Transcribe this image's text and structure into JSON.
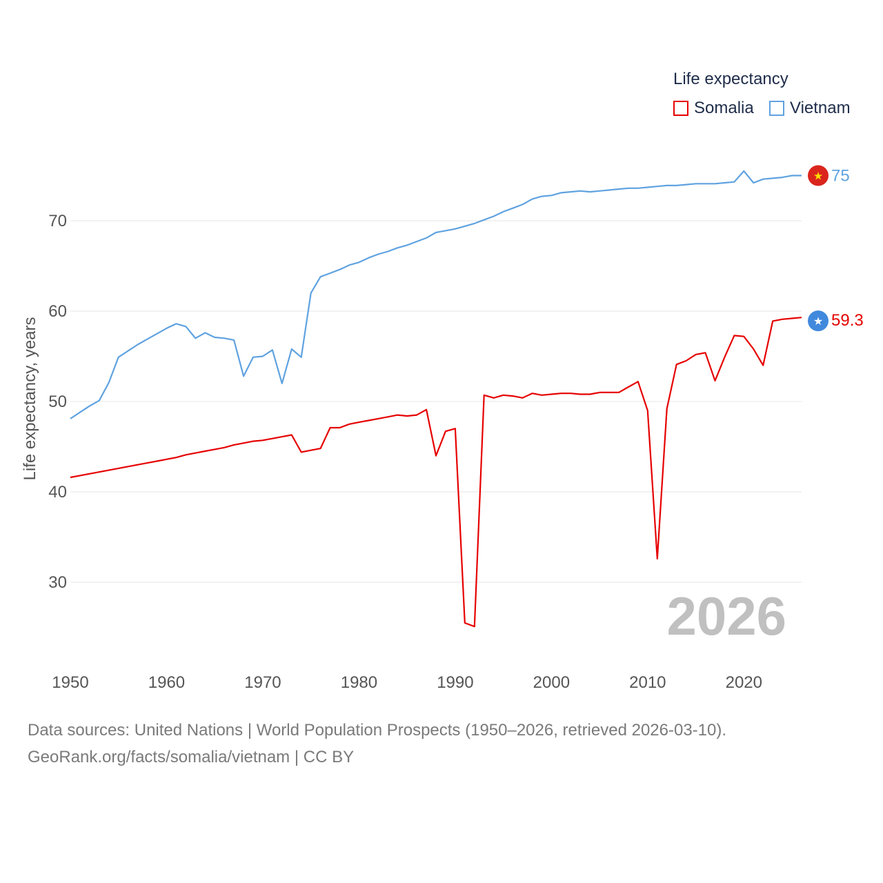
{
  "legend": {
    "title": "Life expectancy",
    "items": [
      {
        "name": "Somalia",
        "color": "#e60000"
      },
      {
        "name": "Vietnam",
        "color": "#5fa2e0"
      }
    ]
  },
  "year_watermark": "2026",
  "source": {
    "line1": "Data sources: United Nations | World Population Prospects (1950–2026, retrieved 2026-03-10).",
    "line2": "GeoRank.org/facts/somalia/vietnam | CC BY"
  },
  "chart_data": {
    "type": "line",
    "title": "Life expectancy",
    "xlabel": "",
    "ylabel": "Life expectancy, years",
    "xlim": [
      1950,
      2026
    ],
    "ylim": [
      22,
      77
    ],
    "x_ticks": [
      1950,
      1960,
      1970,
      1980,
      1990,
      2000,
      2010,
      2020
    ],
    "y_ticks": [
      30,
      40,
      50,
      60,
      70
    ],
    "grid": true,
    "x": [
      1950,
      1951,
      1952,
      1953,
      1954,
      1955,
      1956,
      1957,
      1958,
      1959,
      1960,
      1961,
      1962,
      1963,
      1964,
      1965,
      1966,
      1967,
      1968,
      1969,
      1970,
      1971,
      1972,
      1973,
      1974,
      1975,
      1976,
      1977,
      1978,
      1979,
      1980,
      1981,
      1982,
      1983,
      1984,
      1985,
      1986,
      1987,
      1988,
      1989,
      1990,
      1991,
      1992,
      1993,
      1994,
      1995,
      1996,
      1997,
      1998,
      1999,
      2000,
      2001,
      2002,
      2003,
      2004,
      2005,
      2006,
      2007,
      2008,
      2009,
      2010,
      2011,
      2012,
      2013,
      2014,
      2015,
      2016,
      2017,
      2018,
      2019,
      2020,
      2021,
      2022,
      2023,
      2024,
      2025,
      2026
    ],
    "series": [
      {
        "name": "Somalia",
        "color": "#e60000",
        "end_label": "59.3",
        "values": [
          41.6,
          41.8,
          42.0,
          42.2,
          42.4,
          42.6,
          42.8,
          43.0,
          43.2,
          43.4,
          43.6,
          43.8,
          44.1,
          44.3,
          44.5,
          44.7,
          44.9,
          45.2,
          45.4,
          45.6,
          45.7,
          45.9,
          46.1,
          46.3,
          44.4,
          44.6,
          44.8,
          47.1,
          47.1,
          47.5,
          47.7,
          47.9,
          48.1,
          48.3,
          48.5,
          48.4,
          48.5,
          49.1,
          44.0,
          46.7,
          47.0,
          25.5,
          25.1,
          50.7,
          50.4,
          50.7,
          50.6,
          50.4,
          50.9,
          50.7,
          50.8,
          50.9,
          50.9,
          50.8,
          50.8,
          51.0,
          51.0,
          51.0,
          51.6,
          52.2,
          49.0,
          32.6,
          49.2,
          54.1,
          54.5,
          55.2,
          55.4,
          52.3,
          54.9,
          57.3,
          57.2,
          55.8,
          54.0,
          58.9,
          59.1,
          59.2,
          59.3
        ]
      },
      {
        "name": "Vietnam",
        "color": "#5fa2e0",
        "end_label": "75",
        "values": [
          48.1,
          48.8,
          49.5,
          50.1,
          52.1,
          54.9,
          55.6,
          56.3,
          56.9,
          57.5,
          58.1,
          58.6,
          58.3,
          57.0,
          57.6,
          57.1,
          57.0,
          56.8,
          52.8,
          54.9,
          55.0,
          55.7,
          52.0,
          55.8,
          54.9,
          62.0,
          63.8,
          64.2,
          64.6,
          65.1,
          65.4,
          65.9,
          66.3,
          66.6,
          67.0,
          67.3,
          67.7,
          68.1,
          68.7,
          68.9,
          69.1,
          69.4,
          69.7,
          70.1,
          70.5,
          71.0,
          71.4,
          71.8,
          72.4,
          72.7,
          72.8,
          73.1,
          73.2,
          73.3,
          73.2,
          73.3,
          73.4,
          73.5,
          73.6,
          73.6,
          73.7,
          73.8,
          73.9,
          73.9,
          74.0,
          74.1,
          74.1,
          74.1,
          74.2,
          74.3,
          75.5,
          74.2,
          74.6,
          74.7,
          74.8,
          75.0,
          75.0
        ]
      }
    ]
  }
}
